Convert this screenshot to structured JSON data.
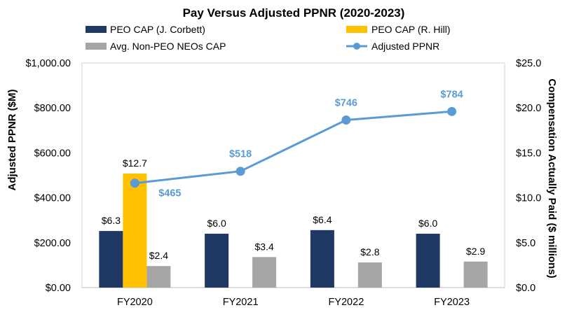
{
  "chart_data": {
    "type": "bar",
    "title": "Pay Versus Adjusted PPNR (2020-2023)",
    "categories": [
      "FY2020",
      "FY2021",
      "FY2022",
      "FY2023"
    ],
    "y_left": {
      "label": "Adjusted PPNR ($M)",
      "range": [
        0,
        1000
      ],
      "ticks": [
        0,
        200,
        400,
        600,
        800,
        1000
      ],
      "tick_labels": [
        "$0.00",
        "$200.00",
        "$400.00",
        "$600.00",
        "$800.00",
        "$1,000.00"
      ]
    },
    "y_right": {
      "label": "Compensation Actually Paid ($ millions)",
      "range": [
        0,
        25
      ],
      "ticks": [
        0,
        5,
        10,
        15,
        20,
        25
      ],
      "tick_labels": [
        "$0.0",
        "$5.0",
        "$10.0",
        "$15.0",
        "$20.0",
        "$25.0"
      ]
    },
    "series": [
      {
        "name": "PEO CAP (J. Corbett)",
        "type": "bar",
        "axis": "right",
        "color": "#1f3864",
        "values": [
          6.3,
          6.0,
          6.4,
          6.0
        ],
        "labels": [
          "$6.3",
          "$6.0",
          "$6.4",
          "$6.0"
        ]
      },
      {
        "name": "PEO CAP (R. Hill)",
        "type": "bar",
        "axis": "right",
        "color": "#ffc000",
        "values": [
          12.7,
          null,
          null,
          null
        ],
        "labels": [
          "$12.7",
          "",
          "",
          ""
        ]
      },
      {
        "name": "Avg. Non-PEO NEOs CAP",
        "type": "bar",
        "axis": "right",
        "color": "#a5a5a5",
        "values": [
          2.4,
          3.4,
          2.8,
          2.9
        ],
        "labels": [
          "$2.4",
          "$3.4",
          "$2.8",
          "$2.9"
        ]
      },
      {
        "name": "Adjusted PPNR",
        "type": "line",
        "axis": "left",
        "color": "#5b9bd5",
        "values": [
          465,
          518,
          746,
          784
        ],
        "labels": [
          "$465",
          "$518",
          "$746",
          "$784"
        ]
      }
    ],
    "legend": {
      "position": "top",
      "items": [
        "PEO CAP (J. Corbett)",
        "PEO CAP (R. Hill)",
        "Avg. Non-PEO NEOs CAP",
        "Adjusted PPNR"
      ]
    }
  }
}
